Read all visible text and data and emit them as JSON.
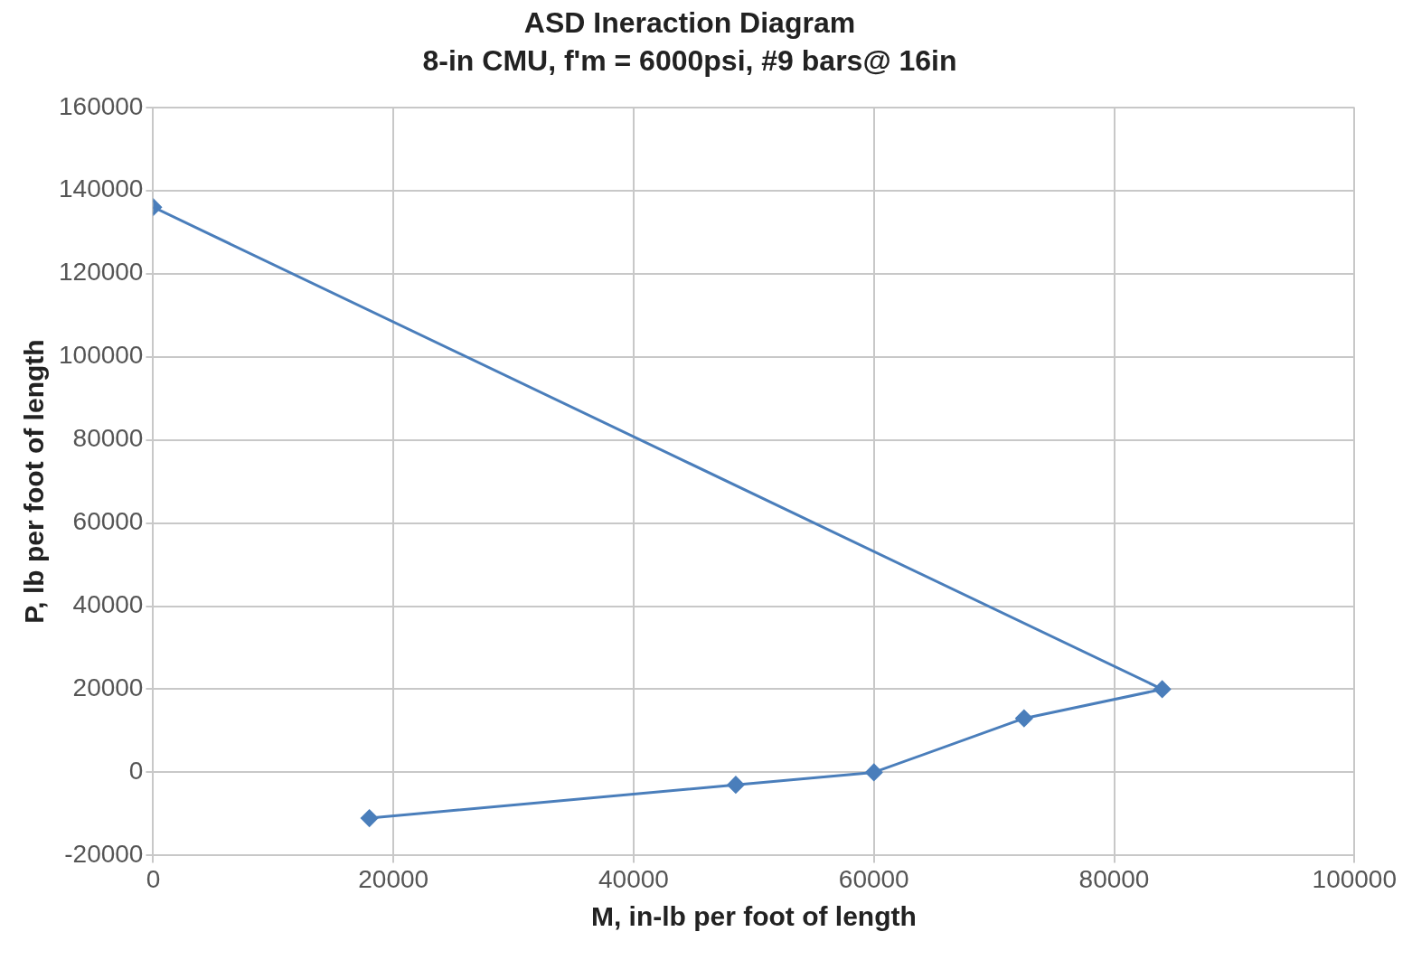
{
  "chart_data": {
    "type": "line",
    "title": "ASD Ineraction Diagram",
    "subtitle": "8-in CMU, f'm = 6000psi, #9 bars@ 16in",
    "xlabel": "M, in-lb per foot of length",
    "ylabel": "P, lb per foot of length",
    "series": [
      {
        "color": "#4a7ebb",
        "x": [
          0,
          84000,
          72500,
          60000,
          48500,
          18000
        ],
        "values": [
          136000,
          20000,
          13000,
          0,
          -3000,
          -11000
        ]
      }
    ],
    "xlim": [
      0,
      100000
    ],
    "xticks": [
      0,
      20000,
      40000,
      60000,
      80000,
      100000
    ],
    "ylim": [
      -20000,
      160000
    ],
    "yticks": [
      -20000,
      0,
      20000,
      40000,
      60000,
      80000,
      100000,
      120000,
      140000,
      160000
    ],
    "grid": true,
    "legend": false,
    "marker": "diamond",
    "line_style": "solid"
  }
}
